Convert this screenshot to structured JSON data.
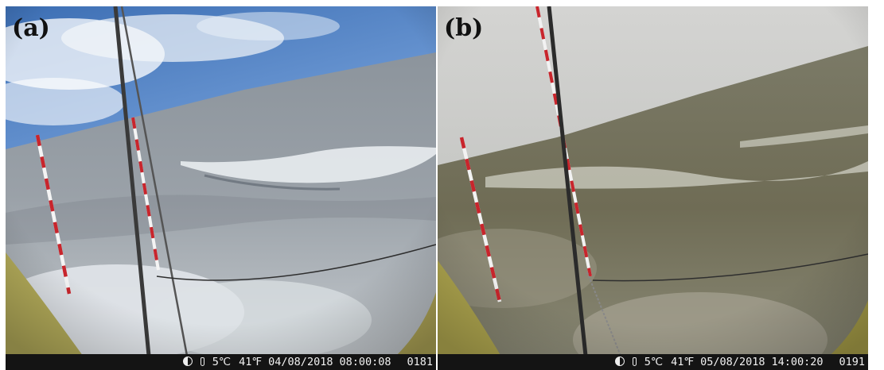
{
  "panels": [
    {
      "label": "(a)",
      "temp_c": "5℃",
      "temp_f": "41℉",
      "date": "04/08/2018",
      "time": "08:00:08",
      "counter": "0181"
    },
    {
      "label": "(b)",
      "temp_c": "5℃",
      "temp_f": "41℉",
      "date": "05/08/2018",
      "time": "14:00:20",
      "counter": "0191"
    }
  ],
  "icons": [
    "moon-phase-icon",
    "thermometer-icon"
  ],
  "colors": {
    "status_bar": "#141414",
    "status_text": "#f2f2f2"
  }
}
